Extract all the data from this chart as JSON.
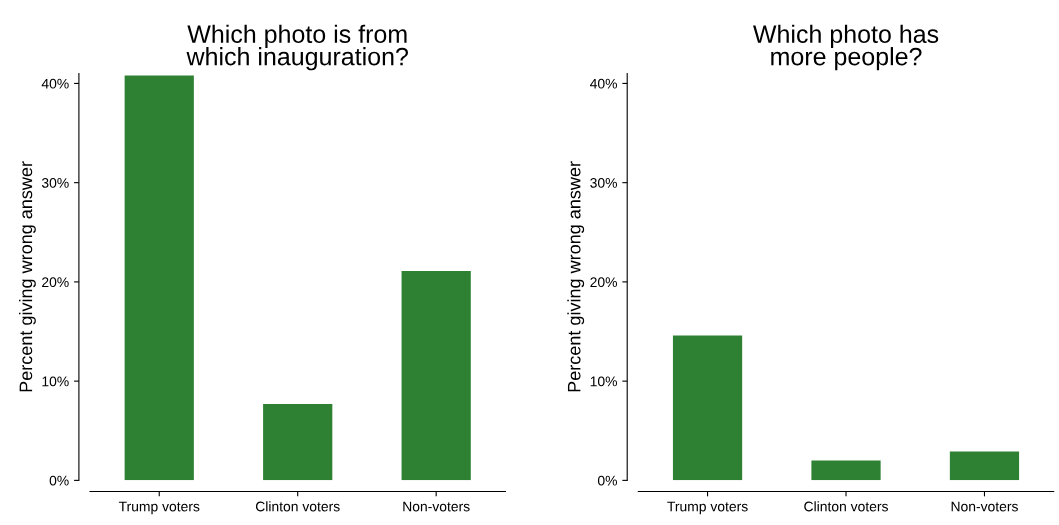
{
  "chart_data": [
    {
      "type": "bar",
      "title": "Which photo is from\nwhich inauguration?",
      "ylabel": "Percent giving wrong answer",
      "categories": [
        "Trump voters",
        "Clinton voters",
        "Non-voters"
      ],
      "values": [
        40.8,
        7.7,
        21.1
      ],
      "color": "#2e8133",
      "ylim": [
        0,
        41
      ],
      "yticks": [
        {
          "value": 0,
          "label": "0%"
        },
        {
          "value": 10,
          "label": "10%"
        },
        {
          "value": 20,
          "label": "20%"
        },
        {
          "value": 30,
          "label": "30%"
        },
        {
          "value": 40,
          "label": "40%"
        }
      ],
      "grid": false
    },
    {
      "type": "bar",
      "title": "Which photo has\nmore people?",
      "ylabel": "Percent giving wrong answer",
      "categories": [
        "Trump voters",
        "Clinton voters",
        "Non-voters"
      ],
      "values": [
        14.6,
        2.0,
        2.9
      ],
      "color": "#2e8133",
      "ylim": [
        0,
        41
      ],
      "yticks": [
        {
          "value": 0,
          "label": "0%"
        },
        {
          "value": 10,
          "label": "10%"
        },
        {
          "value": 20,
          "label": "20%"
        },
        {
          "value": 30,
          "label": "30%"
        },
        {
          "value": 40,
          "label": "40%"
        }
      ],
      "grid": false
    }
  ]
}
